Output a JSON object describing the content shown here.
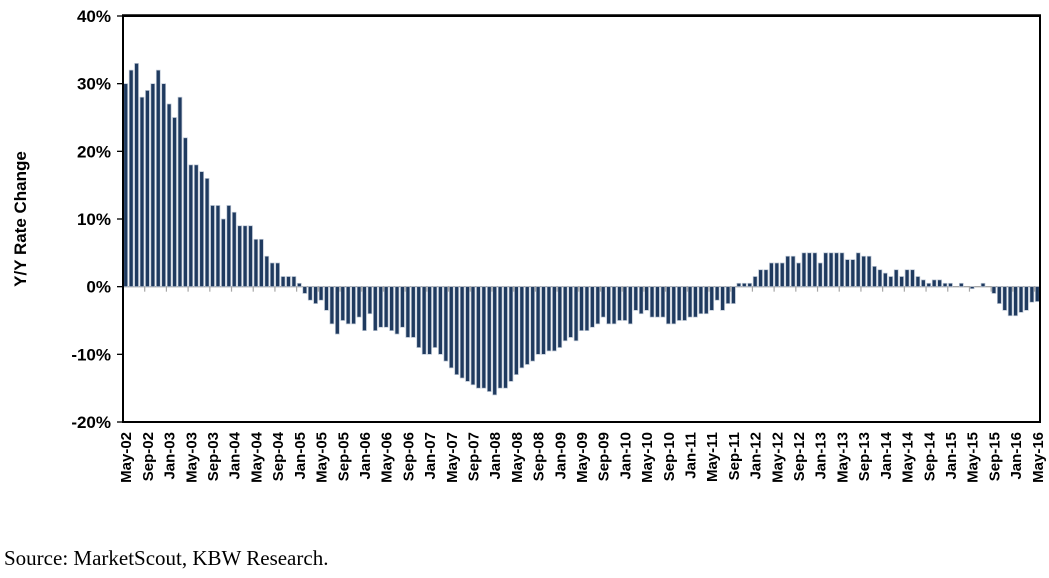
{
  "chart_data": {
    "type": "bar",
    "title": "",
    "xlabel": "",
    "ylabel": "Y/Y Rate Change",
    "ylim": [
      -20,
      40
    ],
    "grid": "off",
    "legend": "none",
    "bar_color": "#1F3A5F",
    "bar_outline_color": "#BCC6D4",
    "zero_line_color": "#A6A6A6",
    "axis_color": "#000000",
    "y_tick_labels": [
      "40%",
      "30%",
      "20%",
      "10%",
      "0%",
      "-10%",
      "-20%"
    ],
    "y_tick_values": [
      40,
      30,
      20,
      10,
      0,
      -10,
      -20
    ],
    "x_first_month": "May-02",
    "x_last_month": "May-16",
    "x_tick_every_months": 4,
    "x_tick_labels": [
      "May-02",
      "Sep-02",
      "Jan-03",
      "May-03",
      "Sep-03",
      "Jan-04",
      "May-04",
      "Sep-04",
      "Jan-05",
      "May-05",
      "Sep-05",
      "Jan-06",
      "May-06",
      "Sep-06",
      "Jan-07",
      "May-07",
      "Sep-07",
      "Jan-08",
      "May-08",
      "Sep-08",
      "Jan-09",
      "May-09",
      "Sep-09",
      "Jan-10",
      "May-10",
      "Sep-10",
      "Jan-11",
      "May-11",
      "Sep-11",
      "Jan-12",
      "May-12",
      "Sep-12",
      "Jan-13",
      "May-13",
      "Sep-13",
      "Jan-14",
      "May-14",
      "Sep-14",
      "Jan-15",
      "May-15",
      "Sep-15",
      "Jan-16",
      "May-16"
    ],
    "values": [
      30,
      32,
      33,
      28,
      29,
      30,
      32,
      30,
      27,
      25,
      28,
      22,
      18,
      18,
      17,
      16,
      12,
      12,
      10,
      12,
      11,
      9,
      9,
      9,
      7,
      7,
      4.5,
      3.5,
      3.5,
      1.5,
      1.5,
      1.5,
      0.5,
      -1,
      -2,
      -2.5,
      -2,
      -3.5,
      -5.5,
      -7,
      -5,
      -5.5,
      -5.5,
      -4.5,
      -6.5,
      -4,
      -6.5,
      -6,
      -6,
      -6.5,
      -7,
      -6,
      -7.5,
      -7.5,
      -9,
      -10,
      -10,
      -9,
      -10,
      -11,
      -12,
      -13,
      -13.5,
      -14,
      -14.5,
      -15,
      -15,
      -15.5,
      -16,
      -15,
      -15,
      -14,
      -13,
      -12,
      -11.5,
      -11,
      -10,
      -10,
      -9.5,
      -9.5,
      -9,
      -8,
      -7.5,
      -8,
      -6.5,
      -6.5,
      -6,
      -5.5,
      -4.5,
      -5.5,
      -5.5,
      -5,
      -5,
      -5.5,
      -3.5,
      -4,
      -3.5,
      -4.5,
      -4.5,
      -4.5,
      -5.5,
      -5.5,
      -5,
      -5,
      -4.5,
      -4.5,
      -4,
      -4,
      -3.5,
      -2,
      -3.5,
      -2.5,
      -2.5,
      0.5,
      0.5,
      0.5,
      1.5,
      2.5,
      2.5,
      3.5,
      3.5,
      3.5,
      4.5,
      4.5,
      3.5,
      5,
      5,
      5,
      3.5,
      5,
      5,
      5,
      5,
      4,
      4,
      5,
      4.5,
      4.5,
      3,
      2.5,
      2,
      1.5,
      2.5,
      1.5,
      2.5,
      2.5,
      1.5,
      1,
      0.5,
      1,
      1,
      0.5,
      0.5,
      0,
      0.5,
      0,
      -0.3,
      0,
      0.5,
      0,
      -1,
      -2.5,
      -3.5,
      -4.3,
      -4.3,
      -3.8,
      -3.5,
      -2.3,
      -2.2
    ]
  },
  "footer": {
    "source": "Source: MarketScout, KBW Research."
  }
}
